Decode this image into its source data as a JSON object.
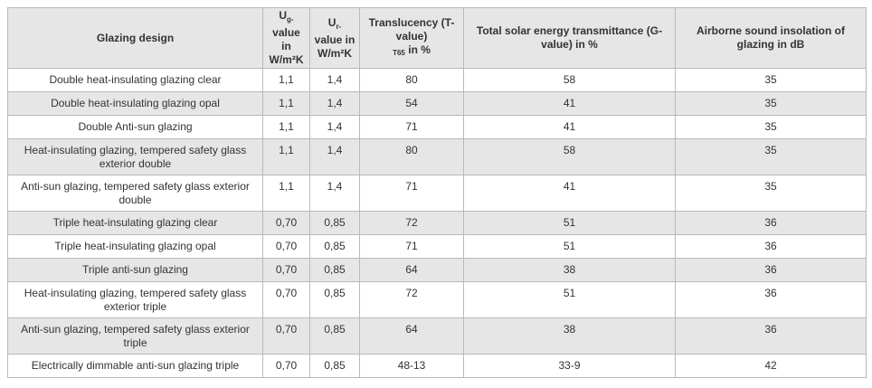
{
  "table": {
    "headers": {
      "design": "Glazing design",
      "ug_main": "U",
      "ug_sub": "g-",
      "ug_rest": "value in W/m²K",
      "ur_main": "U",
      "ur_sub": "r-",
      "ur_rest": "value in W/m²K",
      "translucency": "Translucency (T-value)",
      "translucency_sub": "T65",
      "translucency_unit": "in %",
      "solar": "Total solar energy transmittance (G-value) in %",
      "sound": "Airborne sound insolation of glazing in dB"
    },
    "rows": [
      {
        "design": "Double heat-insulating glazing clear",
        "ug": "1,1",
        "ur": "1,4",
        "t": "80",
        "g": "58",
        "db": "35"
      },
      {
        "design": "Double heat-insulating glazing opal",
        "ug": "1,1",
        "ur": "1,4",
        "t": "54",
        "g": "41",
        "db": "35"
      },
      {
        "design": "Double Anti-sun glazing",
        "ug": "1,1",
        "ur": "1,4",
        "t": "71",
        "g": "41",
        "db": "35"
      },
      {
        "design": "Heat-insulating glazing, tempered safety glass exterior double",
        "ug": "1,1",
        "ur": "1,4",
        "t": "80",
        "g": "58",
        "db": "35"
      },
      {
        "design": "Anti-sun glazing, tempered safety glass exterior double",
        "ug": "1,1",
        "ur": "1,4",
        "t": "71",
        "g": "41",
        "db": "35"
      },
      {
        "design": "Triple heat-insulating glazing clear",
        "ug": "0,70",
        "ur": "0,85",
        "t": "72",
        "g": "51",
        "db": "36"
      },
      {
        "design": "Triple heat-insulating glazing opal",
        "ug": "0,70",
        "ur": "0,85",
        "t": "71",
        "g": "51",
        "db": "36"
      },
      {
        "design": "Triple anti-sun glazing",
        "ug": "0,70",
        "ur": "0,85",
        "t": "64",
        "g": "38",
        "db": "36"
      },
      {
        "design": "Heat-insulating glazing, tempered safety glass exterior triple",
        "ug": "0,70",
        "ur": "0,85",
        "t": "72",
        "g": "51",
        "db": "36"
      },
      {
        "design": "Anti-sun glazing, tempered safety glass exterior triple",
        "ug": "0,70",
        "ur": "0,85",
        "t": "64",
        "g": "38",
        "db": "36"
      },
      {
        "design": "Electrically dimmable anti-sun glazing triple",
        "ug": "0,70",
        "ur": "0,85",
        "t": "48-13",
        "g": "33-9",
        "db": "42"
      }
    ]
  }
}
